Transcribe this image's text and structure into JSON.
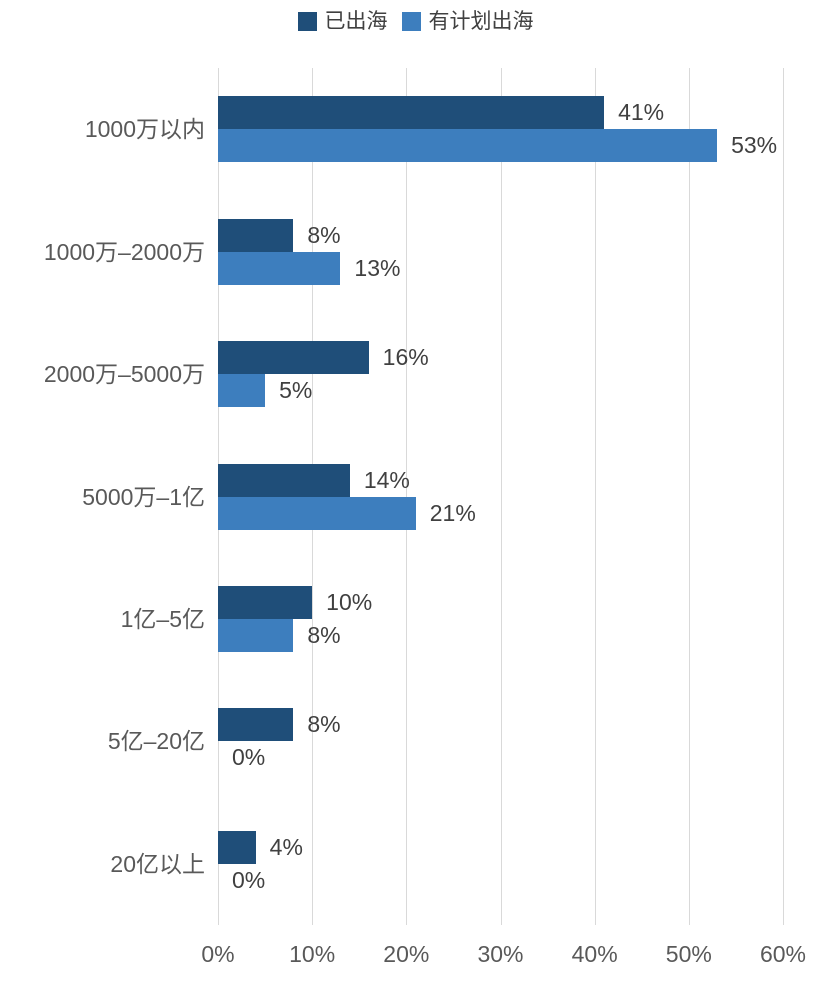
{
  "chart_data": {
    "type": "bar",
    "orientation": "horizontal",
    "title": "",
    "xlabel": "",
    "ylabel": "",
    "categories": [
      "1000万以内",
      "1000万–2000万",
      "2000万–5000万",
      "5000万–1亿",
      "1亿–5亿",
      "5亿–20亿",
      "20亿以上"
    ],
    "series": [
      {
        "name": "已出海",
        "color": "#1F4E79",
        "values": [
          41,
          8,
          16,
          14,
          10,
          8,
          4
        ]
      },
      {
        "name": "有计划出海",
        "color": "#3D7EBE",
        "values": [
          53,
          13,
          5,
          21,
          8,
          0,
          0
        ]
      }
    ],
    "value_labels": [
      [
        "41%",
        "8%",
        "16%",
        "14%",
        "10%",
        "8%",
        "4%"
      ],
      [
        "53%",
        "13%",
        "5%",
        "21%",
        "8%",
        "0%",
        "0%"
      ]
    ],
    "x_ticks": [
      "0%",
      "10%",
      "20%",
      "30%",
      "40%",
      "50%",
      "60%"
    ],
    "xlim": [
      0,
      60
    ],
    "grid": "vertical",
    "gridline_color": "#D9D9D9",
    "legend_position": "top",
    "value_label_color": "#404040",
    "axis_label_color": "#595959"
  }
}
